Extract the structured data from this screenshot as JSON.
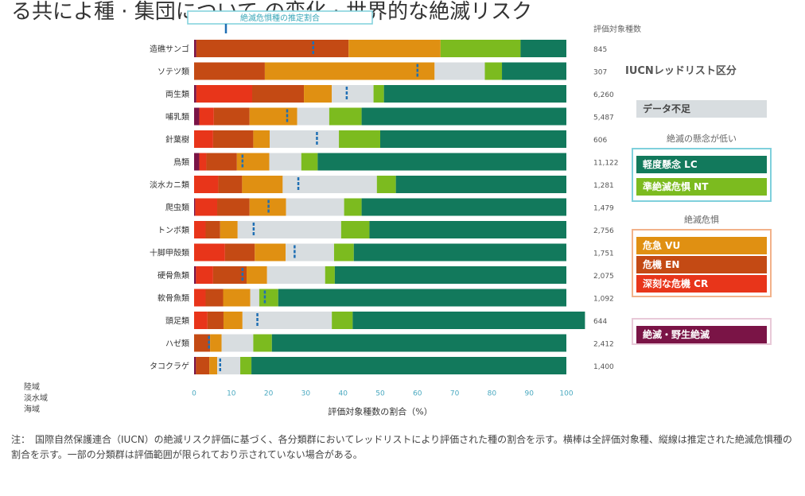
{
  "title": "る共によ種 · 集団について の変化 · 世界的な絶滅リスク",
  "chart_data": {
    "type": "bar",
    "stacked": true,
    "orientation": "horizontal",
    "title": "",
    "xlabel": "評価対象種数の割合（%）",
    "ylabel": "",
    "xlim": [
      0,
      100
    ],
    "x_ticks": [
      "0",
      "10",
      "20",
      "30",
      "40",
      "50",
      "60",
      "70",
      "80",
      "90",
      "100"
    ],
    "top_axis_label": "絶滅危惧種の推定割合",
    "right_column_header": "評価対象種数",
    "categories": [
      "造礁サンゴ",
      "ソテツ類",
      "両生類",
      "哺乳類",
      "針葉樹",
      "鳥類",
      "淡水カニ類",
      "爬虫類",
      "トンボ類",
      "十脚甲殻類",
      "硬骨魚類",
      "軟骨魚類",
      "頭足類",
      "ハゼ類",
      "タコクラゲ"
    ],
    "species_counts": [
      "845",
      "307",
      "6,260",
      "5,487",
      "606",
      "11,122",
      "1,281",
      "1,479",
      "2,756",
      "1,751",
      "2,075",
      "1,092",
      "644",
      "2,412",
      "1,400"
    ],
    "threatened_estimate": [
      32,
      60,
      41,
      25,
      33,
      13,
      28,
      20,
      16,
      27,
      13,
      19,
      17,
      4,
      7
    ],
    "series": [
      {
        "name": "絶滅・野生絶滅",
        "color": "#7a1446",
        "values": [
          0.6,
          0,
          0.6,
          1.4,
          0,
          1.4,
          0,
          0.3,
          0,
          0,
          0.5,
          0,
          0,
          0,
          0.5
        ]
      },
      {
        "name": "深刻な危機",
        "color": "#e8351a",
        "values": [
          0,
          0,
          15,
          3.9,
          5.1,
          1.9,
          6.5,
          5.9,
          3.1,
          8.3,
          4.6,
          3.1,
          3.6,
          0,
          0
        ]
      },
      {
        "name": "危機",
        "color": "#c44a14",
        "values": [
          40.9,
          19,
          13.9,
          9.6,
          10.8,
          8.2,
          6.4,
          8.7,
          3.9,
          8,
          9,
          4.7,
          4.3,
          4.3,
          3.6
        ]
      },
      {
        "name": "危急",
        "color": "#e09012",
        "values": [
          24.7,
          45.6,
          7.5,
          12.8,
          4.4,
          8.7,
          10.9,
          9.8,
          4.7,
          8.3,
          5.5,
          7.3,
          5.1,
          3.1,
          2.1
        ]
      },
      {
        "name": "データ不足",
        "color": "#d8dde0",
        "values": [
          0,
          13.5,
          11.2,
          8.6,
          18.6,
          8.6,
          25.3,
          15.6,
          27.8,
          13,
          15.6,
          2.4,
          24,
          8.5,
          6.2
        ]
      },
      {
        "name": "準絶滅危惧",
        "color": "#7cbb1f",
        "values": [
          21.5,
          4.6,
          2.8,
          8.7,
          11.1,
          4.4,
          5.1,
          4.7,
          7.6,
          5.3,
          2.6,
          5.1,
          5.6,
          5,
          3
        ]
      },
      {
        "name": "軽度懸念",
        "color": "#12795c",
        "values": [
          12.3,
          17.3,
          49,
          55,
          50,
          66.8,
          45.8,
          55,
          52.9,
          57.1,
          62.2,
          77.4,
          62.4,
          79.1,
          84.6
        ]
      }
    ],
    "legend_position": "right",
    "grid": false
  },
  "legend": {
    "header": "IUCNレッドリスト区分",
    "items": [
      {
        "label": "データ不足",
        "color": "#d8dde0",
        "text_color": "#444"
      },
      {
        "label": "軽度懸念 LC",
        "color": "#12795c",
        "text_color": "#fff"
      },
      {
        "label": "準絶滅危惧 NT",
        "color": "#7cbb1f",
        "text_color": "#fff"
      },
      {
        "label": "危急 VU",
        "color": "#e09012",
        "text_color": "#fff"
      },
      {
        "label": "危機 EN",
        "color": "#c44a14",
        "text_color": "#fff"
      },
      {
        "label": "深刻な危機 CR",
        "color": "#e8351a",
        "text_color": "#fff"
      },
      {
        "label": "絶滅・野生絶滅",
        "color": "#7a1446",
        "text_color": "#fff"
      }
    ],
    "group_not_threatened": "絶滅の懸念が低い",
    "group_threatened": "絶滅危惧"
  },
  "side_notes": [
    "陸域",
    "淡水域",
    "海域"
  ],
  "footnote": {
    "mark": "注：",
    "text": "国際自然保護連合（IUCN）の絶滅リスク評価に基づく、各分類群においてレッドリストにより評価された種の割合を示す。横棒は全評価対象種、縦線は推定された絶滅危惧種の割合を示す。一部の分類群は評価範囲が限られており示されていない場合がある。"
  }
}
